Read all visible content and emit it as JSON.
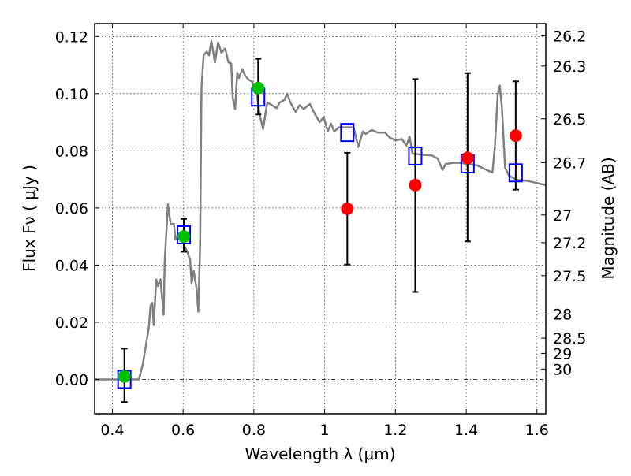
{
  "chart_data": {
    "type": "scatter",
    "xlabel": "Wavelength  λ (μm)",
    "ylabel": "Flux  Fν  ( μJy )",
    "ylabel_right": "Magnitude (AB)",
    "xlim": [
      0.35,
      1.625
    ],
    "ylim": [
      -0.012,
      0.1245
    ],
    "grid": true,
    "xticks": [
      0.4,
      0.6,
      0.8,
      1.0,
      1.2,
      1.4,
      1.6
    ],
    "xtick_labels": [
      "0.4",
      "0.6",
      "0.8",
      "1",
      "1.2",
      "1.4",
      "1.6"
    ],
    "yticks": [
      0.0,
      0.02,
      0.04,
      0.06,
      0.08,
      0.1,
      0.12
    ],
    "ytick_labels": [
      "0.00",
      "0.02",
      "0.04",
      "0.06",
      "0.08",
      "0.10",
      "0.12"
    ],
    "mag_zeropoint": 23.9,
    "right_ticks": [
      26.2,
      26.3,
      26.5,
      26.7,
      27,
      27.2,
      27.5,
      28,
      28.5,
      29,
      30
    ],
    "right_tick_labels": [
      "26.2",
      "26.3",
      "26.5",
      "26.7",
      "27",
      "27.2",
      "27.5",
      "28",
      "28.5",
      "29",
      "30"
    ],
    "colors": {
      "spectrum": "#808080",
      "detected": "#00c000",
      "upper": "#ff0000",
      "model": "#0000ff",
      "errorbar": "#000000"
    },
    "spectrum": {
      "name": "model spectrum",
      "x": [
        0.35,
        0.475,
        0.486,
        0.503,
        0.508,
        0.513,
        0.517,
        0.524,
        0.529,
        0.536,
        0.545,
        0.548,
        0.557,
        0.565,
        0.574,
        0.578,
        0.587,
        0.612,
        0.62,
        0.624,
        0.63,
        0.638,
        0.643,
        0.648,
        0.652,
        0.658,
        0.667,
        0.673,
        0.68,
        0.69,
        0.699,
        0.708,
        0.719,
        0.728,
        0.736,
        0.74,
        0.747,
        0.753,
        0.758,
        0.767,
        0.775,
        0.784,
        0.796,
        0.809,
        0.817,
        0.826,
        0.838,
        0.851,
        0.864,
        0.873,
        0.886,
        0.894,
        0.903,
        0.918,
        0.929,
        0.941,
        0.958,
        0.971,
        0.986,
        0.997,
        1.009,
        1.018,
        1.027,
        1.04,
        1.057,
        1.082,
        1.095,
        1.108,
        1.116,
        1.133,
        1.15,
        1.171,
        1.184,
        1.201,
        1.218,
        1.231,
        1.24,
        1.248,
        1.278,
        1.303,
        1.32,
        1.333,
        1.342,
        1.363,
        1.384,
        1.406,
        1.431,
        1.452,
        1.474,
        1.481,
        1.489,
        1.495,
        1.501,
        1.51,
        1.521,
        1.542,
        1.576,
        1.625
      ],
      "y": [
        0.0,
        0.0,
        0.0052,
        0.018,
        0.0258,
        0.0268,
        0.019,
        0.035,
        0.0327,
        0.035,
        0.0226,
        0.041,
        0.0613,
        0.0542,
        0.0545,
        0.049,
        0.051,
        0.0446,
        0.0418,
        0.0336,
        0.038,
        0.0319,
        0.0237,
        0.0465,
        0.1023,
        0.1134,
        0.1147,
        0.1134,
        0.1184,
        0.111,
        0.118,
        0.1143,
        0.1158,
        0.111,
        0.1105,
        0.0987,
        0.0946,
        0.1073,
        0.1055,
        0.1086,
        0.1064,
        0.105,
        0.1041,
        0.0995,
        0.0922,
        0.0877,
        0.0969,
        0.096,
        0.0949,
        0.0969,
        0.0978,
        0.1,
        0.0969,
        0.0937,
        0.096,
        0.0946,
        0.0964,
        0.0932,
        0.09,
        0.0918,
        0.0868,
        0.0895,
        0.0868,
        0.0882,
        0.0882,
        0.0882,
        0.0813,
        0.0868,
        0.0859,
        0.0873,
        0.0864,
        0.0864,
        0.0846,
        0.0837,
        0.0841,
        0.0818,
        0.0849,
        0.079,
        0.0786,
        0.0784,
        0.0772,
        0.0733,
        0.0754,
        0.0758,
        0.0758,
        0.0754,
        0.0749,
        0.0736,
        0.0724,
        0.0813,
        0.0996,
        0.1028,
        0.095,
        0.074,
        0.0713,
        0.0699,
        0.0694,
        0.068
      ]
    },
    "model_points": {
      "x": [
        0.434,
        0.602,
        0.812,
        1.064,
        1.256,
        1.404,
        1.54
      ],
      "y": [
        0.0,
        0.0506,
        0.0988,
        0.0864,
        0.0782,
        0.0754,
        0.0723
      ]
    },
    "detections": {
      "x": [
        0.434,
        0.602,
        0.812
      ],
      "y": [
        0.001,
        0.05,
        0.102
      ],
      "err_low": [
        -0.0079,
        0.0447,
        0.0927
      ],
      "err_high": [
        0.0108,
        0.0562,
        0.1122
      ]
    },
    "non_detections": {
      "x": [
        1.064,
        1.256,
        1.404,
        1.54
      ],
      "y": [
        0.0597,
        0.068,
        0.0775,
        0.0853
      ],
      "err_low": [
        0.0402,
        0.0306,
        0.0483,
        0.0664
      ],
      "err_high": [
        0.0793,
        0.1051,
        0.1072,
        0.1043
      ]
    }
  }
}
